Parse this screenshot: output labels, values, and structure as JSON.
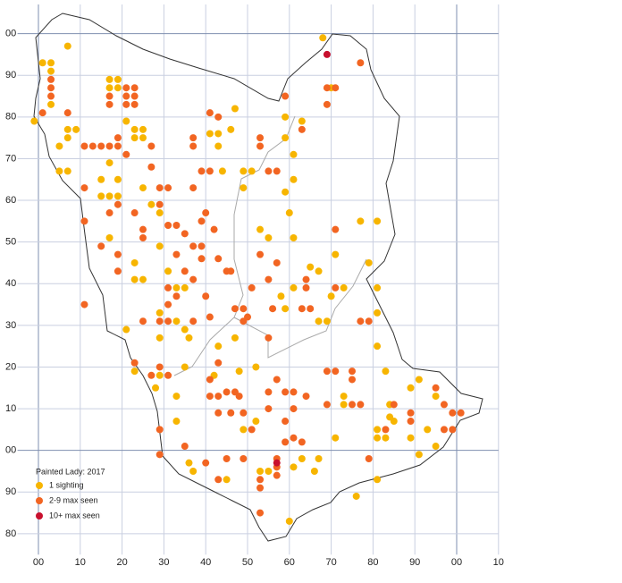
{
  "chart_data": {
    "type": "scatter",
    "title": "Painted Lady:  2017",
    "xlim": [
      -5,
      110
    ],
    "ylim": [
      75,
      207
    ],
    "xticks": [
      {
        "value": 0,
        "label": "00"
      },
      10,
      20,
      30,
      40,
      50,
      60,
      70,
      80,
      90,
      {
        "value": 100,
        "label": "00"
      },
      {
        "value": 110,
        "label": "10"
      }
    ],
    "yticks": [
      80,
      90,
      {
        "value": 100,
        "label": "00"
      },
      {
        "value": 110,
        "label": "10"
      },
      {
        "value": 120,
        "label": "20"
      },
      {
        "value": 130,
        "label": "30"
      },
      {
        "value": 140,
        "label": "40"
      },
      {
        "value": 150,
        "label": "50"
      },
      {
        "value": 160,
        "label": "60"
      },
      {
        "value": 170,
        "label": "70"
      },
      {
        "value": 180,
        "label": "80"
      },
      {
        "value": 190,
        "label": "90"
      },
      {
        "value": 200,
        "label": "00"
      }
    ],
    "grid": true,
    "legend": "bottom-left",
    "series": [
      {
        "name": "1 sighting",
        "color": "#f7b500",
        "x": [
          7,
          1,
          3,
          3,
          3,
          -1,
          7,
          7,
          9,
          5,
          5,
          7,
          17,
          19,
          17,
          19,
          21,
          23,
          25,
          23,
          25,
          17,
          19,
          15,
          15,
          17,
          19,
          25,
          27,
          29,
          17,
          23,
          25,
          23,
          29,
          31,
          33,
          35,
          29,
          29,
          33,
          35,
          36,
          21,
          23,
          29,
          28,
          33,
          33,
          36,
          37,
          42,
          43,
          47,
          41,
          43,
          46,
          47,
          43,
          44,
          49,
          49,
          51,
          59,
          59,
          61,
          61,
          59,
          60,
          61,
          53,
          55,
          58,
          59,
          61,
          65,
          67,
          71,
          73,
          70,
          69,
          67,
          77,
          81,
          79,
          81,
          81,
          81,
          83,
          68,
          70,
          63,
          52,
          48,
          52,
          49,
          45,
          53,
          55,
          61,
          60,
          63,
          67,
          66,
          71,
          73,
          73,
          81,
          81,
          83,
          84,
          84,
          85,
          89,
          91,
          89,
          91,
          95,
          95,
          93,
          76,
          81,
          35
        ],
        "values": [
          197,
          193,
          193,
          191,
          183,
          179,
          177,
          175,
          177,
          173,
          167,
          167,
          189,
          189,
          187,
          187,
          179,
          177,
          177,
          175,
          175,
          169,
          165,
          165,
          161,
          161,
          161,
          163,
          159,
          157,
          151,
          145,
          141,
          141,
          149,
          143,
          139,
          139,
          133,
          127,
          131,
          129,
          127,
          129,
          119,
          118,
          115,
          113,
          107,
          97,
          95,
          118,
          125,
          127,
          176,
          176,
          177,
          182,
          173,
          167,
          167,
          163,
          167,
          180,
          175,
          171,
          165,
          162,
          157,
          151,
          153,
          151,
          137,
          134,
          139,
          144,
          143,
          147,
          139,
          137,
          131,
          131,
          155,
          155,
          145,
          139,
          133,
          125,
          119,
          199,
          187,
          179,
          120,
          119,
          107,
          105,
          93,
          95,
          95,
          96,
          83,
          98,
          98,
          95,
          103,
          113,
          111,
          105,
          103,
          103,
          111,
          108,
          107,
          115,
          117,
          103,
          99,
          113,
          101,
          105,
          89,
          93,
          120
        ]
      },
      {
        "name": "2-9 max seen",
        "color": "#f26522",
        "x": [
          1,
          3,
          3,
          3,
          7,
          11,
          13,
          15,
          17,
          19,
          11,
          17,
          21,
          23,
          17,
          21,
          23,
          21,
          23,
          19,
          21,
          27,
          27,
          17,
          19,
          15,
          23,
          25,
          25,
          19,
          19,
          29,
          31,
          29,
          31,
          33,
          35,
          33,
          35,
          31,
          33,
          37,
          31,
          29,
          31,
          25,
          37,
          37,
          37,
          39,
          41,
          41,
          43,
          40,
          39,
          42,
          39,
          37,
          39,
          43,
          45,
          46,
          40,
          37,
          41,
          49,
          47,
          49,
          50,
          53,
          53,
          55,
          57,
          53,
          57,
          51,
          56,
          55,
          64,
          64,
          65,
          63,
          55,
          43,
          71,
          71,
          77,
          79,
          69,
          71,
          75,
          75,
          75,
          77,
          69,
          48,
          43,
          41,
          41,
          45,
          47,
          49,
          51,
          43,
          46,
          55,
          57,
          59,
          61,
          55,
          59,
          61,
          64,
          59,
          61,
          63,
          57,
          57,
          53,
          53,
          53,
          57,
          49,
          45,
          43,
          40,
          29,
          29,
          35,
          29,
          31,
          27,
          23,
          11,
          79,
          83,
          85,
          89,
          89,
          95,
          97,
          99,
          101,
          97,
          99,
          71,
          69,
          69,
          77,
          59,
          63,
          11
        ],
        "values": [
          181,
          189,
          187,
          185,
          181,
          173,
          173,
          173,
          173,
          173,
          163,
          185,
          185,
          185,
          183,
          183,
          183,
          187,
          187,
          175,
          171,
          173,
          168,
          157,
          159,
          149,
          157,
          153,
          151,
          147,
          143,
          163,
          163,
          159,
          154,
          154,
          152,
          147,
          143,
          139,
          137,
          141,
          135,
          131,
          131,
          131,
          175,
          173,
          163,
          167,
          167,
          181,
          180,
          157,
          155,
          153,
          149,
          149,
          146,
          146,
          143,
          143,
          137,
          131,
          132,
          131,
          134,
          134,
          132,
          173,
          175,
          167,
          167,
          147,
          145,
          139,
          134,
          141,
          141,
          139,
          134,
          134,
          127,
          121,
          153,
          139,
          131,
          131,
          119,
          119,
          119,
          117,
          111,
          111,
          111,
          113,
          113,
          117,
          113,
          114,
          114,
          109,
          105,
          109,
          109,
          114,
          117,
          114,
          114,
          110,
          107,
          110,
          113,
          102,
          103,
          102,
          98,
          96,
          93,
          91,
          85,
          94,
          98,
          98,
          93,
          97,
          99,
          105,
          101,
          120,
          118,
          118,
          121,
          135,
          98,
          105,
          111,
          109,
          107,
          115,
          111,
          109,
          109,
          105,
          105,
          187,
          187,
          183,
          193,
          185,
          177,
          155
        ]
      },
      {
        "name": "10+ max seen",
        "color": "#c8102e",
        "x": [
          69,
          57
        ],
        "values": [
          195,
          97
        ]
      }
    ]
  }
}
